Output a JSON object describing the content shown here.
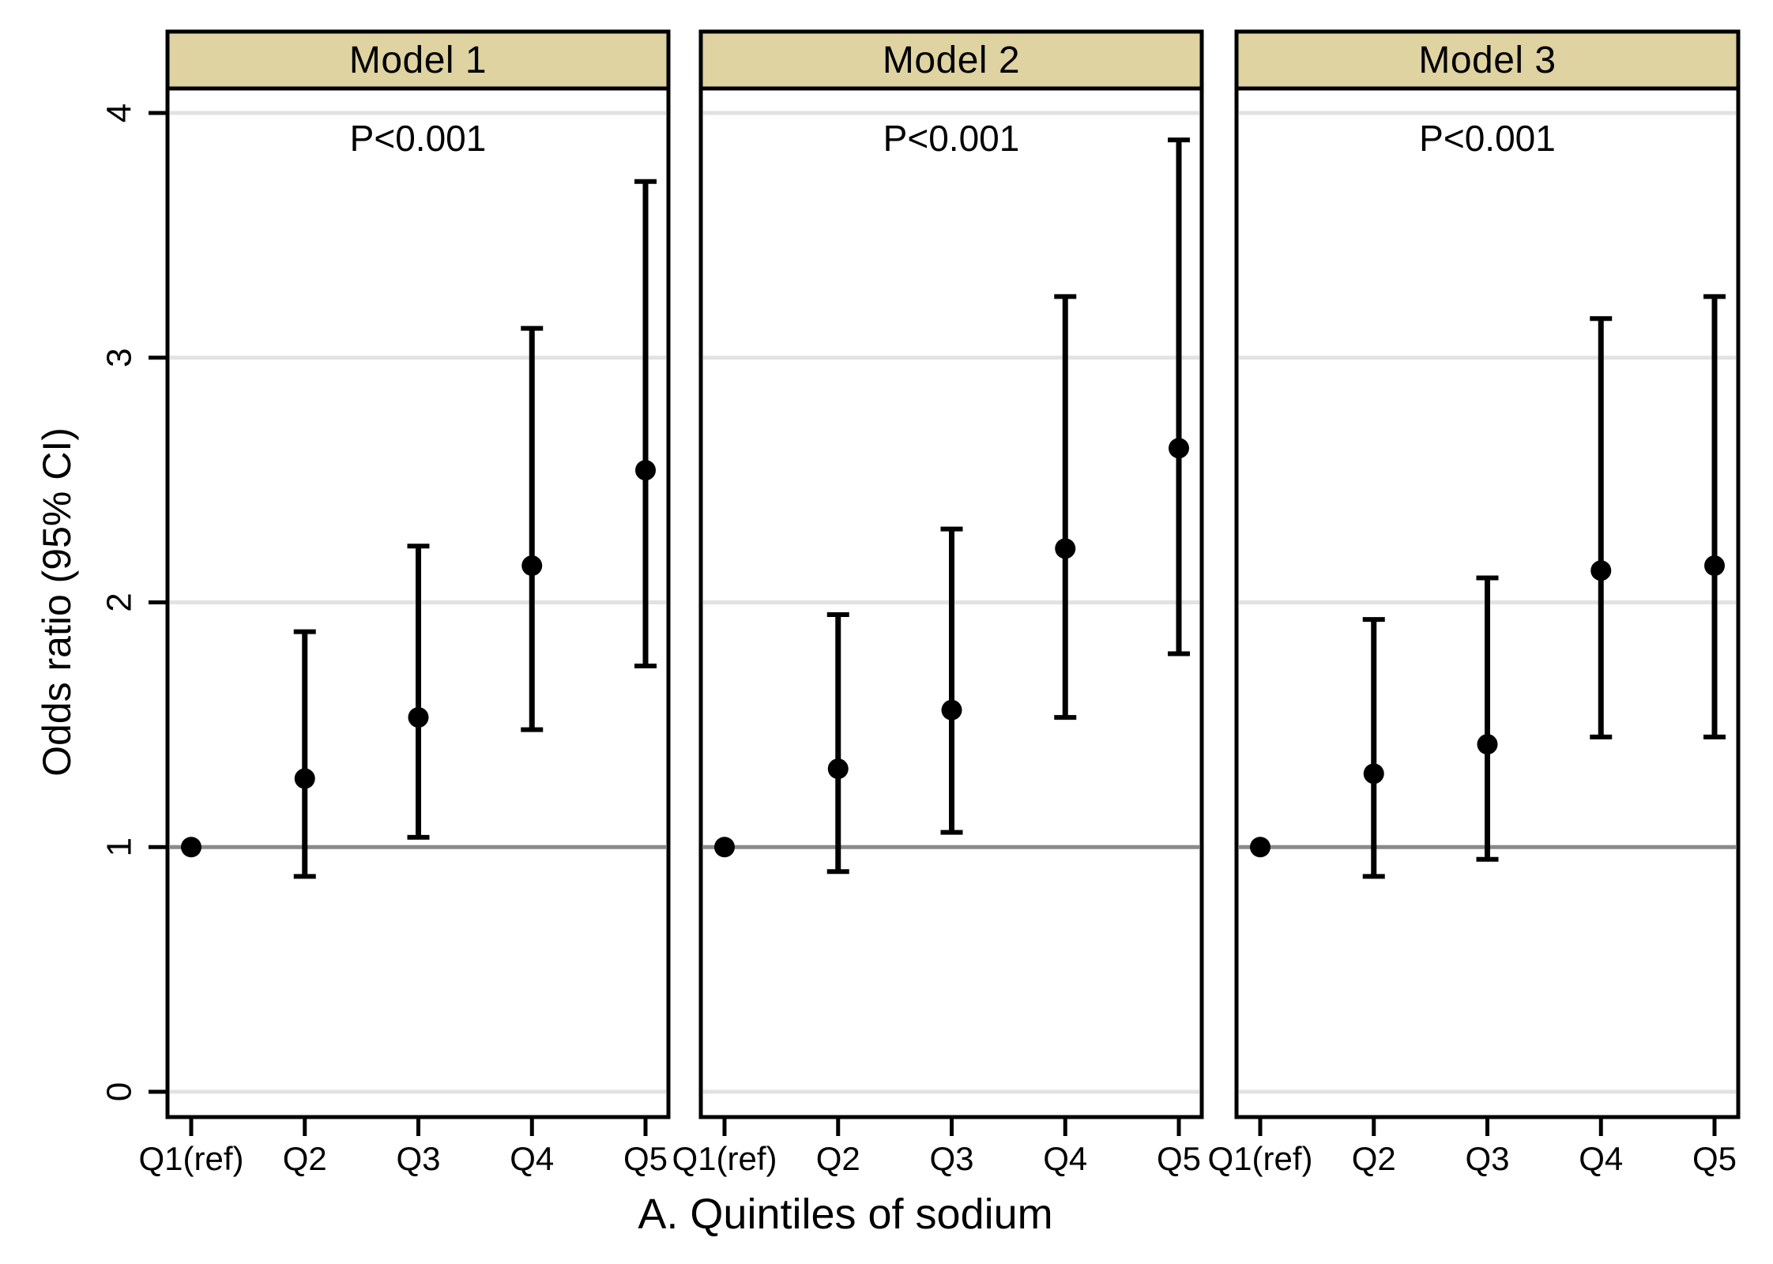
{
  "figure": {
    "y_axis_title": "Odds ratio (95% CI)",
    "x_axis_title": "A. Quintiles of sodium",
    "colors": {
      "background": "#ffffff",
      "panel_header_bg": "#ded3a1",
      "border": "#000000",
      "gridline": "#e2e2e2",
      "reference_line": "#8a8a8a",
      "marker": "#000000",
      "text": "#000000"
    }
  },
  "chart_data": {
    "type": "scatter",
    "subtype": "forest_plot_errorbars",
    "xlabel": "A. Quintiles of sodium",
    "ylabel": "Odds ratio (95% CI)",
    "categories": [
      "Q1(ref)",
      "Q2",
      "Q3",
      "Q4",
      "Q5"
    ],
    "y_ticks": [
      0,
      1,
      2,
      3,
      4
    ],
    "ylim": [
      -0.1,
      4.1
    ],
    "reference_line_y": 1,
    "grid": true,
    "legend": "none",
    "panels": [
      {
        "title": "Model 1",
        "p_label": "P<0.001",
        "odds_ratio": [
          1.0,
          1.28,
          1.53,
          2.15,
          2.54
        ],
        "ci_low": [
          null,
          0.88,
          1.04,
          1.48,
          1.74
        ],
        "ci_high": [
          null,
          1.88,
          2.23,
          3.12,
          3.72
        ]
      },
      {
        "title": "Model 2",
        "p_label": "P<0.001",
        "odds_ratio": [
          1.0,
          1.32,
          1.56,
          2.22,
          2.63
        ],
        "ci_low": [
          null,
          0.9,
          1.06,
          1.53,
          1.79
        ],
        "ci_high": [
          null,
          1.95,
          2.3,
          3.25,
          3.89
        ]
      },
      {
        "title": "Model 3",
        "p_label": "P<0.001",
        "odds_ratio": [
          1.0,
          1.3,
          1.42,
          2.13,
          2.15
        ],
        "ci_low": [
          null,
          0.88,
          0.95,
          1.45,
          1.45
        ],
        "ci_high": [
          null,
          1.93,
          2.1,
          3.16,
          3.25
        ]
      }
    ]
  }
}
